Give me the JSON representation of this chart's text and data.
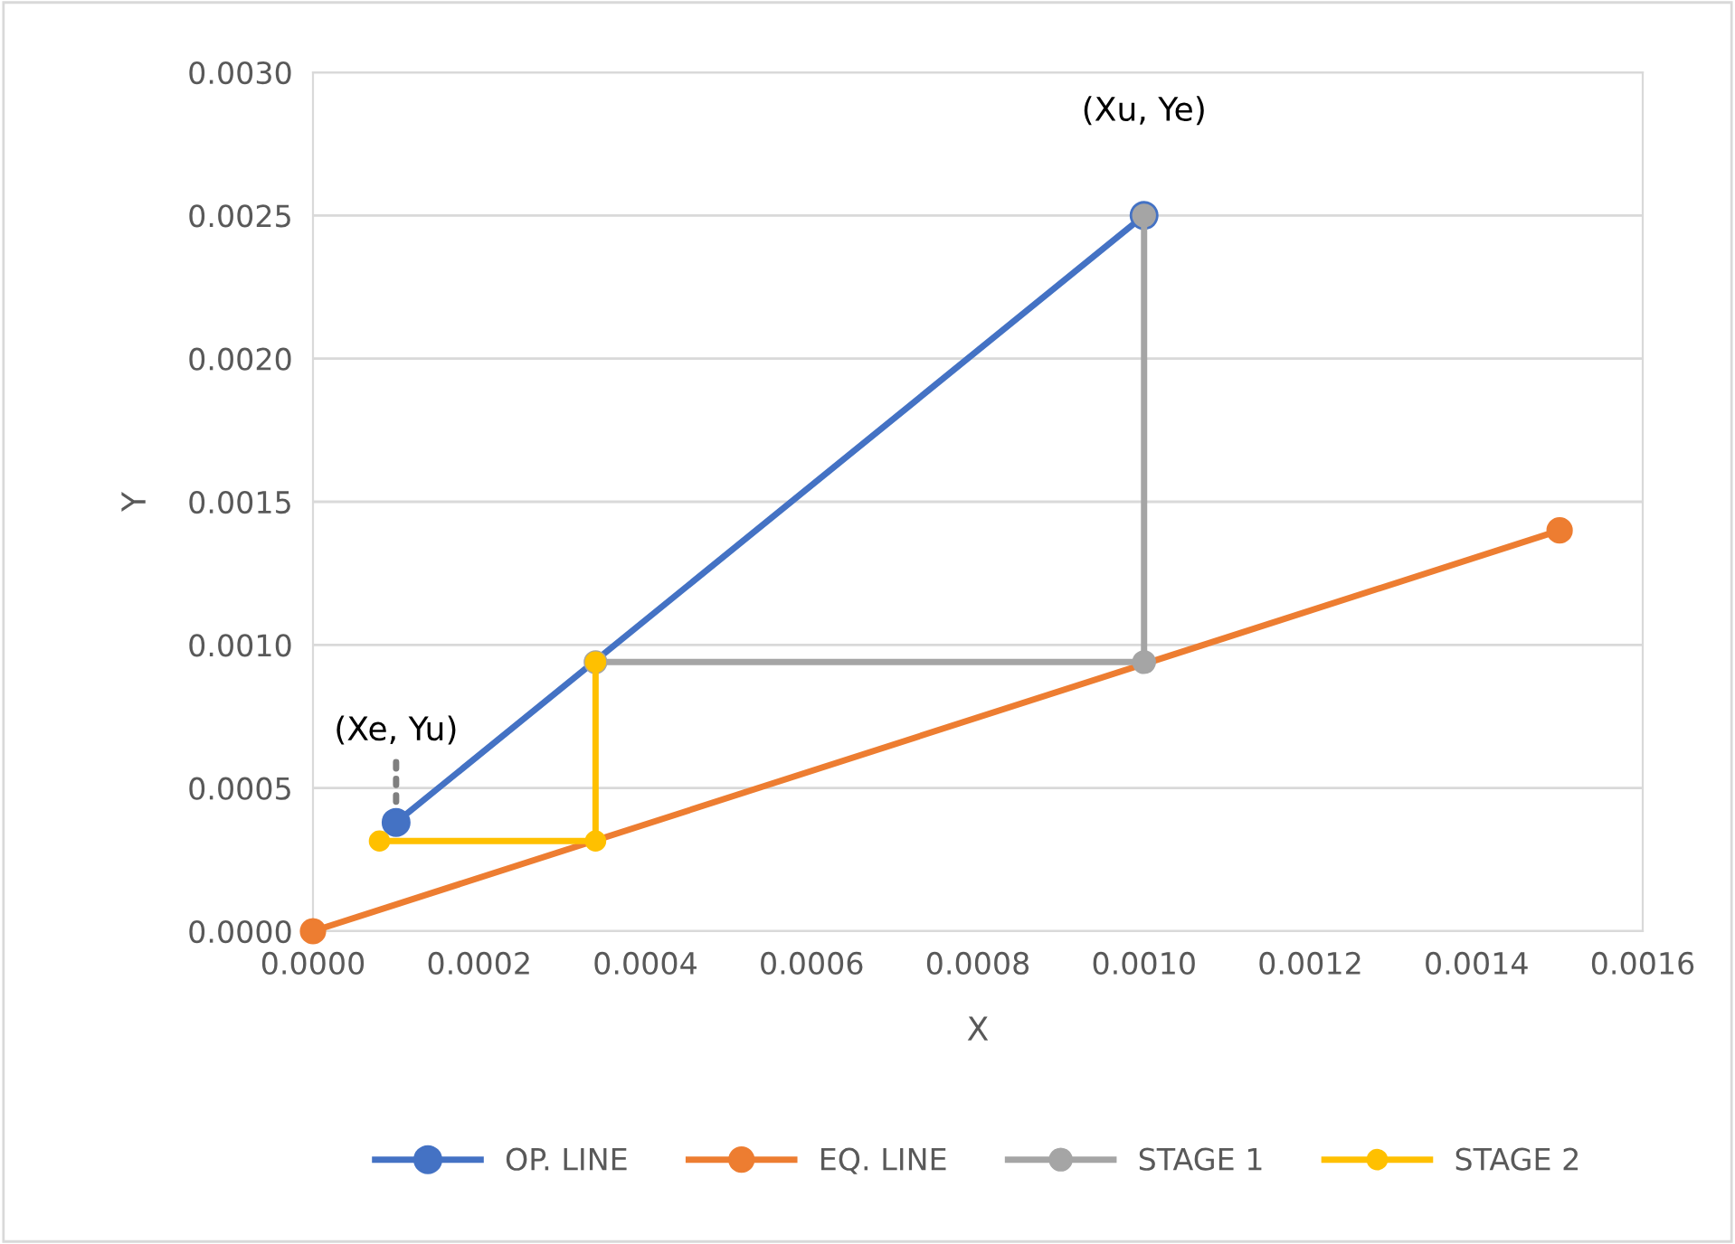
{
  "chart_data": {
    "type": "line",
    "xlabel": "X",
    "ylabel": "Y",
    "xlim": [
      0,
      0.0016
    ],
    "ylim": [
      0,
      0.003
    ],
    "xticks": [
      {
        "value": 0,
        "label": "0.0000"
      },
      {
        "value": 0.0002,
        "label": "0.0002"
      },
      {
        "value": 0.0004,
        "label": "0.0004"
      },
      {
        "value": 0.0006,
        "label": "0.0006"
      },
      {
        "value": 0.0008,
        "label": "0.0008"
      },
      {
        "value": 0.001,
        "label": "0.0010"
      },
      {
        "value": 0.0012,
        "label": "0.0012"
      },
      {
        "value": 0.0014,
        "label": "0.0014"
      },
      {
        "value": 0.0016,
        "label": "0.0016"
      }
    ],
    "yticks": [
      {
        "value": 0,
        "label": "0.0000"
      },
      {
        "value": 0.0005,
        "label": "0.0005"
      },
      {
        "value": 0.001,
        "label": "0.0010"
      },
      {
        "value": 0.0015,
        "label": "0.0015"
      },
      {
        "value": 0.002,
        "label": "0.0020"
      },
      {
        "value": 0.0025,
        "label": "0.0025"
      },
      {
        "value": 0.003,
        "label": "0.0030"
      }
    ],
    "series": [
      {
        "name": "OP. LINE",
        "color": "#4472c4",
        "x": [
          0.0001,
          0.001
        ],
        "values": [
          0.00038,
          0.0025
        ]
      },
      {
        "name": "EQ. LINE",
        "color": "#ed7d31",
        "x": [
          0,
          0.0015
        ],
        "values": [
          0,
          0.0014
        ]
      },
      {
        "name": "STAGE 1",
        "color": "#a5a5a5",
        "x": [
          0.001,
          0.001,
          0.00034
        ],
        "values": [
          0.0025,
          0.00094,
          0.00094
        ]
      },
      {
        "name": "STAGE 2",
        "color": "#ffc000",
        "x": [
          0.00034,
          0.00034,
          8e-05
        ],
        "values": [
          0.00094,
          0.000315,
          0.000315
        ]
      }
    ],
    "annotations": [
      {
        "text": "(Xu, Ye)",
        "x": 0.001,
        "y": 0.0025
      },
      {
        "text": "(Xe, Yu)",
        "x": 0.0001,
        "y": 0.00038
      }
    ],
    "marker": "circle",
    "line_style": "solid",
    "grid": "y",
    "legend": "bottom"
  }
}
